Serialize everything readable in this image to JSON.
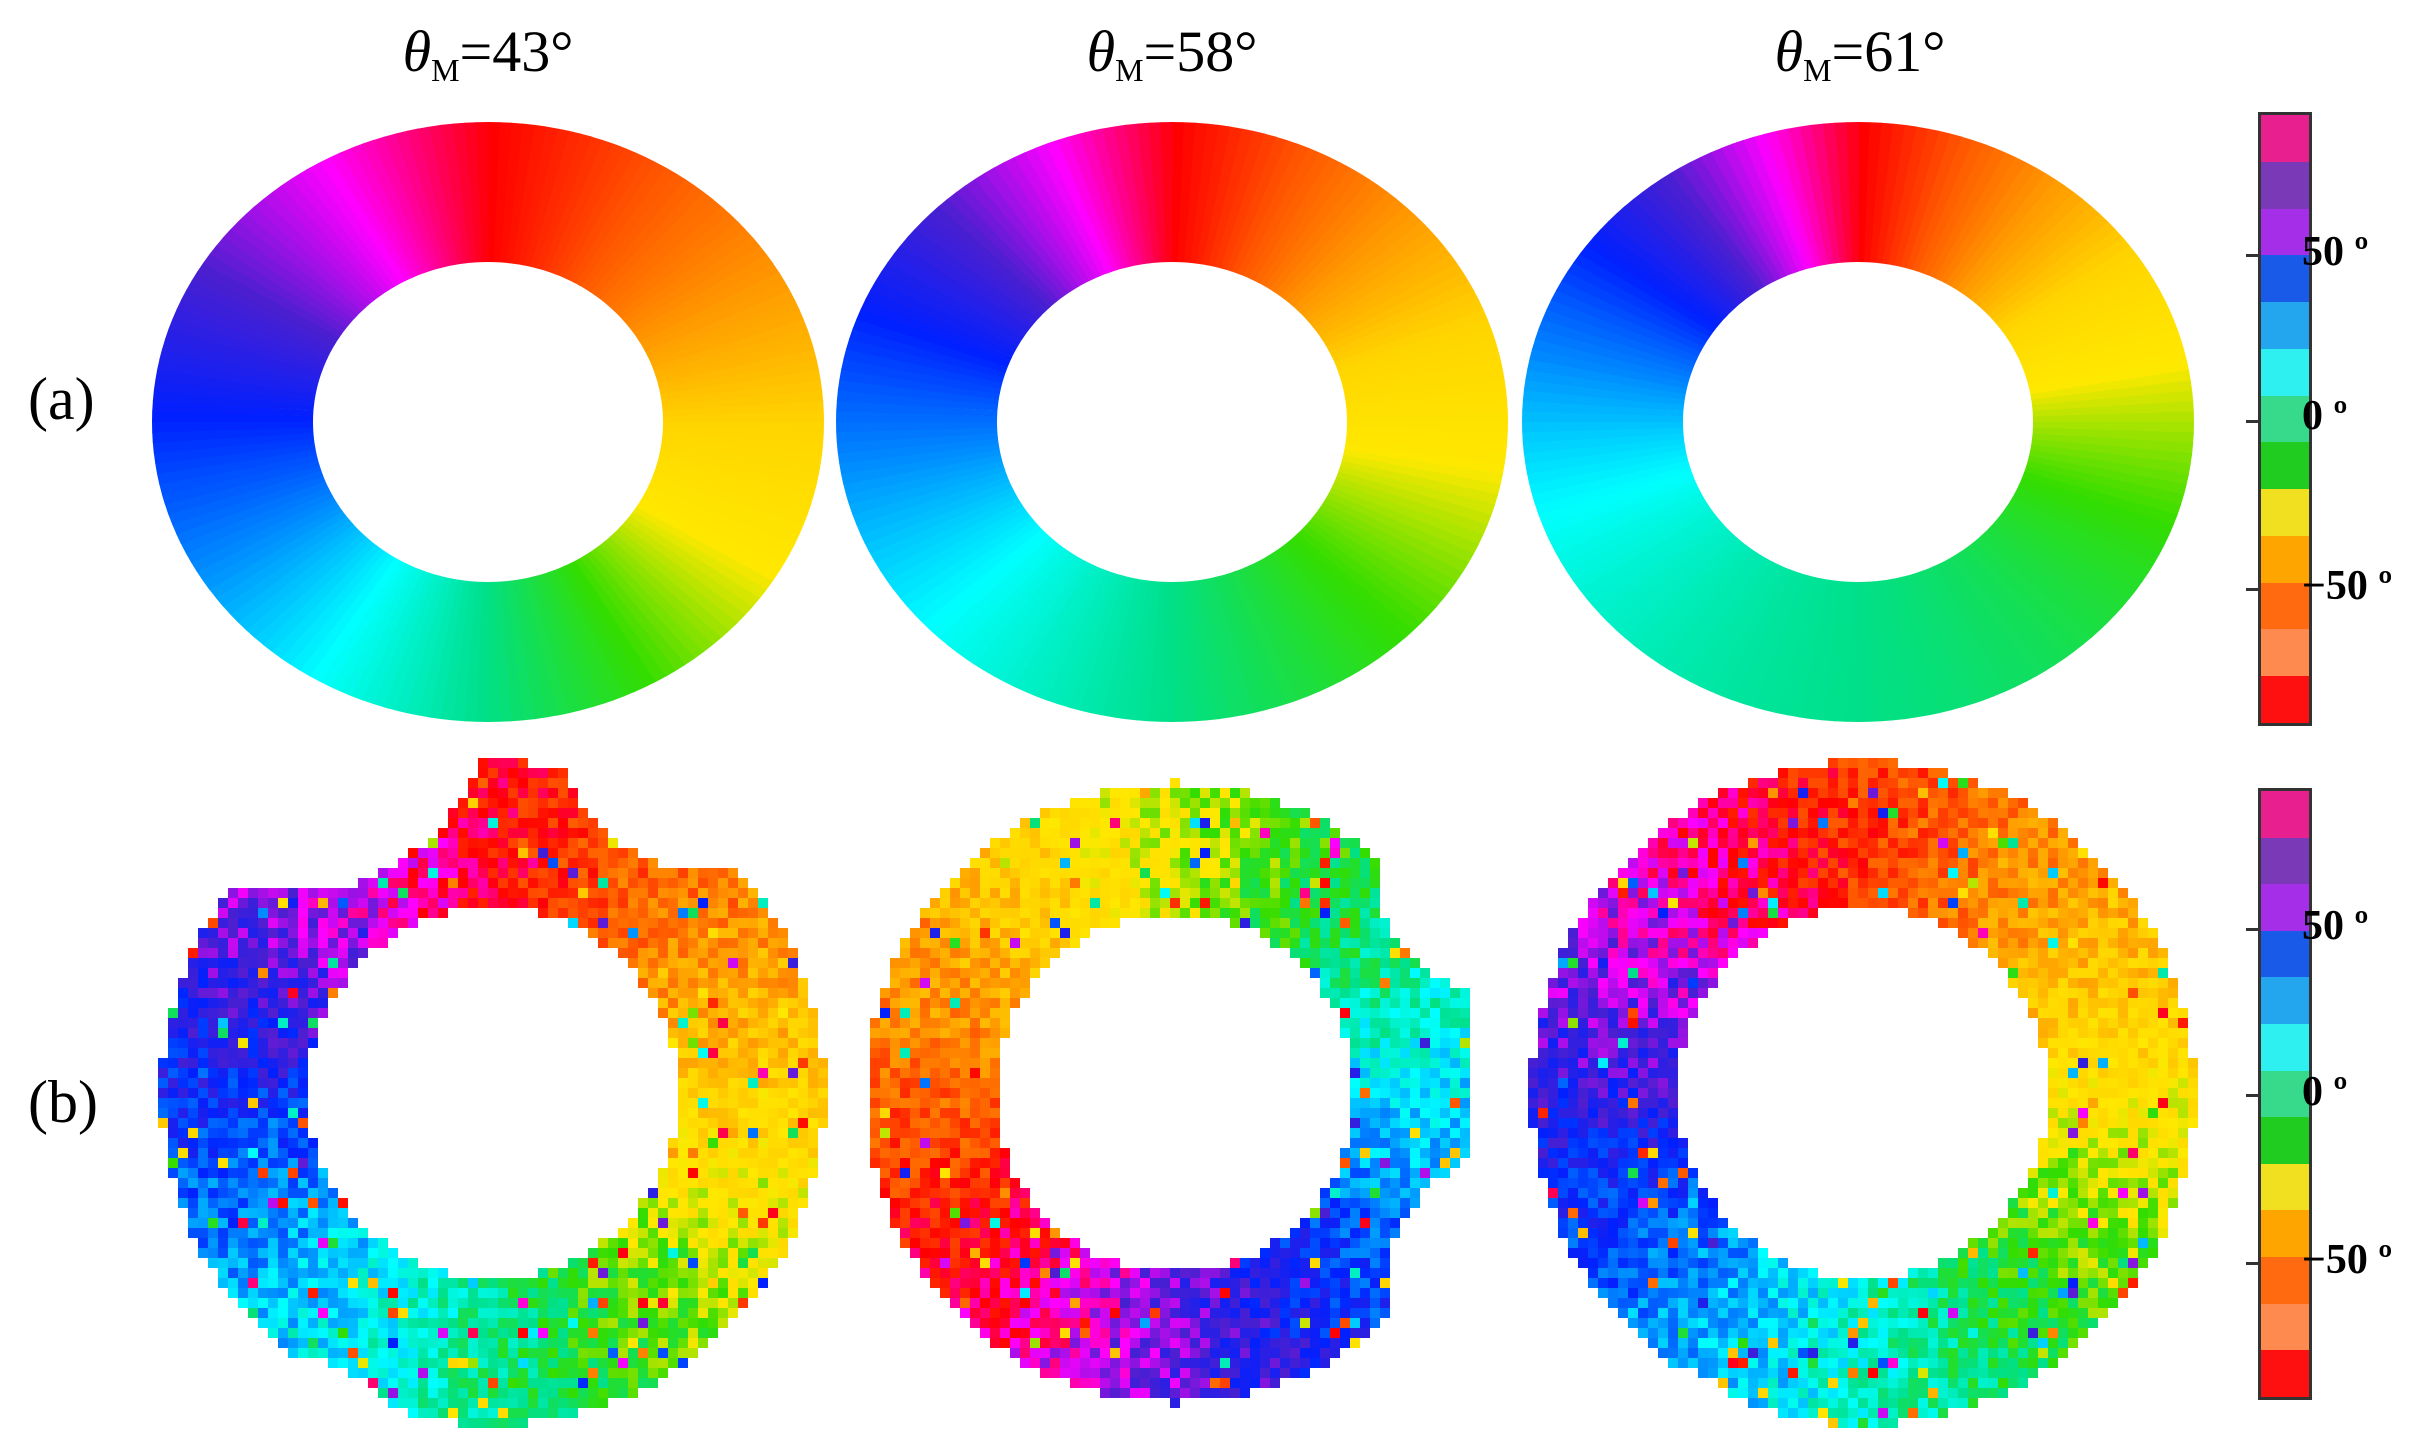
{
  "titles": [
    {
      "symbol": "θ",
      "sub": "M",
      "value": "=43°"
    },
    {
      "symbol": "θ",
      "sub": "M",
      "value": "=58°"
    },
    {
      "symbol": "θ",
      "sub": "M",
      "value": "=61°"
    }
  ],
  "row_labels": {
    "a": "(a)",
    "b": "(b)"
  },
  "colorbar": {
    "colors": [
      "#e8208f",
      "#7a3ab8",
      "#a52fe8",
      "#1a5ae8",
      "#23a6ee",
      "#2ef0f0",
      "#37d98a",
      "#20cc20",
      "#f0e020",
      "#ffa500",
      "#ff6a10",
      "#ff8a50",
      "#ff1010"
    ],
    "labels": [
      "50 º",
      "0 º",
      "−50 º"
    ]
  },
  "colors": {
    "sim_hue_stops": [
      "#ff0000",
      "#ff5500",
      "#ff9900",
      "#ffd500",
      "#ffe800",
      "#33dd00",
      "#00e08a",
      "#00ffff",
      "#0088ff",
      "#0020ff",
      "#4b1fd0",
      "#ff00ff"
    ]
  }
}
